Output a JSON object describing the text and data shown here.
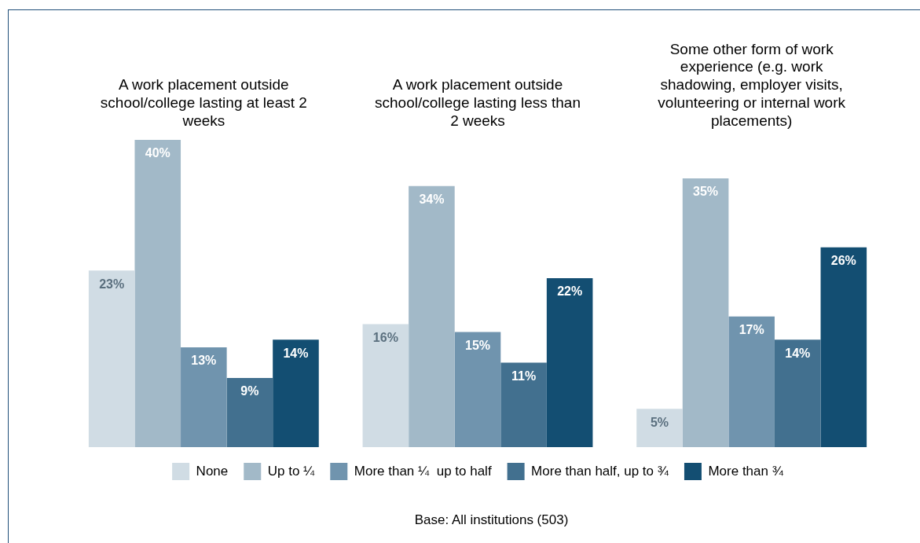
{
  "chart_data": {
    "type": "bar",
    "categories": [
      "A work placement outside school/college lasting at least 2 weeks",
      "A work placement outside school/college lasting less than 2 weeks",
      "Some other form of work experience (e.g. work shadowing, employer visits, volunteering or internal work placements)"
    ],
    "series": [
      {
        "name": "None",
        "color": "#d0dce4",
        "values": [
          23,
          16,
          5
        ],
        "value_labels": [
          "23%",
          "16%",
          "5%"
        ]
      },
      {
        "name": "Up to ¼",
        "color": "#a2b9c8",
        "values": [
          40,
          34,
          35
        ],
        "value_labels": [
          "40%",
          "34%",
          "35%"
        ]
      },
      {
        "name": "More than ¼  up to half",
        "color": "#7094ae",
        "values": [
          13,
          15,
          17
        ],
        "value_labels": [
          "13%",
          "15%",
          "17%"
        ]
      },
      {
        "name": "More than half, up to ¾",
        "color": "#42708f",
        "values": [
          9,
          11,
          14
        ],
        "value_labels": [
          "9%",
          "11%",
          "14%"
        ]
      },
      {
        "name": "More than ¾",
        "color": "#134e72",
        "values": [
          14,
          22,
          26
        ],
        "value_labels": [
          "14%",
          "22%",
          "26%"
        ]
      }
    ],
    "legend": "bottom",
    "grid": false,
    "annotations": [
      "Base: All institutions (503)"
    ]
  }
}
